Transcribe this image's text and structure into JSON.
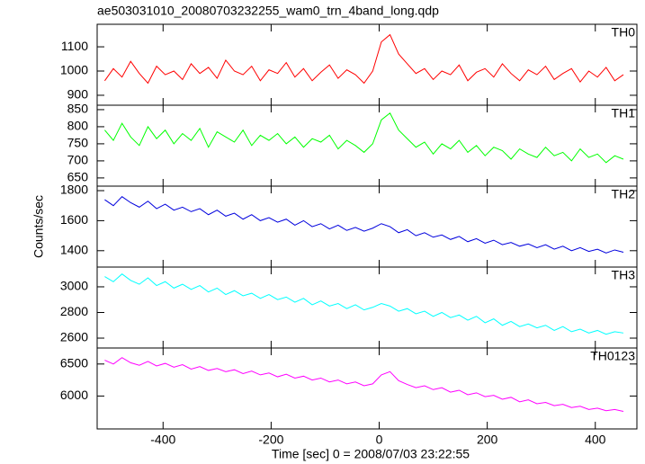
{
  "title": "ae503031010_20080703232255_wam0_trn_4band_long.qdp",
  "y_label": "Counts/sec",
  "x_label": "Time [sec] 0 = 2008/07/03 23:22:55",
  "chart_data": [
    {
      "type": "line",
      "label": "TH0",
      "color": "#ff0000",
      "x": [
        -508,
        -492,
        -476,
        -460,
        -444,
        -428,
        -412,
        -396,
        -380,
        -364,
        -348,
        -332,
        -316,
        -300,
        -284,
        -268,
        -252,
        -236,
        -220,
        -204,
        -188,
        -172,
        -156,
        -140,
        -124,
        -108,
        -92,
        -76,
        -60,
        -44,
        -28,
        -12,
        4,
        20,
        36,
        52,
        68,
        84,
        100,
        116,
        132,
        148,
        164,
        180,
        196,
        212,
        228,
        244,
        260,
        276,
        292,
        308,
        324,
        340,
        356,
        372,
        388,
        404,
        420,
        436,
        452
      ],
      "values": [
        960,
        1010,
        975,
        1040,
        990,
        950,
        1020,
        985,
        1000,
        965,
        1030,
        990,
        1015,
        970,
        1045,
        1000,
        985,
        1020,
        960,
        1005,
        990,
        1035,
        975,
        1010,
        960,
        995,
        1025,
        970,
        1005,
        985,
        950,
        1000,
        1120,
        1150,
        1070,
        1030,
        990,
        1010,
        965,
        1000,
        985,
        1025,
        960,
        995,
        1010,
        975,
        1030,
        990,
        960,
        1005,
        985,
        1020,
        965,
        990,
        1010,
        955,
        1000,
        975,
        1015,
        960,
        985
      ],
      "xlim": [
        -522,
        477
      ],
      "ylim": [
        859,
        1193
      ],
      "yticks": [
        900,
        1000,
        1100
      ]
    },
    {
      "type": "line",
      "label": "TH1",
      "color": "#00ff00",
      "x": [
        -508,
        -492,
        -476,
        -460,
        -444,
        -428,
        -412,
        -396,
        -380,
        -364,
        -348,
        -332,
        -316,
        -300,
        -284,
        -268,
        -252,
        -236,
        -220,
        -204,
        -188,
        -172,
        -156,
        -140,
        -124,
        -108,
        -92,
        -76,
        -60,
        -44,
        -28,
        -12,
        4,
        20,
        36,
        52,
        68,
        84,
        100,
        116,
        132,
        148,
        164,
        180,
        196,
        212,
        228,
        244,
        260,
        276,
        292,
        308,
        324,
        340,
        356,
        372,
        388,
        404,
        420,
        436,
        452
      ],
      "values": [
        790,
        760,
        810,
        770,
        745,
        800,
        765,
        790,
        750,
        780,
        760,
        795,
        740,
        785,
        770,
        755,
        790,
        745,
        775,
        760,
        780,
        750,
        770,
        740,
        765,
        755,
        775,
        735,
        760,
        745,
        725,
        750,
        820,
        840,
        790,
        765,
        740,
        755,
        720,
        750,
        735,
        760,
        725,
        745,
        715,
        740,
        730,
        705,
        735,
        720,
        710,
        740,
        715,
        725,
        700,
        735,
        710,
        720,
        695,
        715,
        705
      ],
      "xlim": [
        -522,
        477
      ],
      "ylim": [
        626,
        863
      ],
      "yticks": [
        650,
        700,
        750,
        800,
        850
      ]
    },
    {
      "type": "line",
      "label": "TH2",
      "color": "#0000dd",
      "x": [
        -508,
        -492,
        -476,
        -460,
        -444,
        -428,
        -412,
        -396,
        -380,
        -364,
        -348,
        -332,
        -316,
        -300,
        -284,
        -268,
        -252,
        -236,
        -220,
        -204,
        -188,
        -172,
        -156,
        -140,
        -124,
        -108,
        -92,
        -76,
        -60,
        -44,
        -28,
        -12,
        4,
        20,
        36,
        52,
        68,
        84,
        100,
        116,
        132,
        148,
        164,
        180,
        196,
        212,
        228,
        244,
        260,
        276,
        292,
        308,
        324,
        340,
        356,
        372,
        388,
        404,
        420,
        436,
        452
      ],
      "values": [
        1740,
        1700,
        1760,
        1720,
        1690,
        1730,
        1680,
        1710,
        1670,
        1690,
        1660,
        1680,
        1640,
        1670,
        1630,
        1650,
        1610,
        1640,
        1600,
        1620,
        1590,
        1610,
        1570,
        1600,
        1560,
        1580,
        1545,
        1570,
        1535,
        1555,
        1530,
        1550,
        1580,
        1560,
        1520,
        1540,
        1500,
        1520,
        1490,
        1505,
        1475,
        1495,
        1460,
        1480,
        1450,
        1470,
        1440,
        1455,
        1430,
        1445,
        1420,
        1440,
        1410,
        1430,
        1400,
        1420,
        1395,
        1410,
        1385,
        1405,
        1390
      ],
      "xlim": [
        -522,
        477
      ],
      "ylim": [
        1291,
        1830
      ],
      "yticks": [
        1400,
        1600,
        1800
      ]
    },
    {
      "type": "line",
      "label": "TH3",
      "color": "#00ffff",
      "x": [
        -508,
        -492,
        -476,
        -460,
        -444,
        -428,
        -412,
        -396,
        -380,
        -364,
        -348,
        -332,
        -316,
        -300,
        -284,
        -268,
        -252,
        -236,
        -220,
        -204,
        -188,
        -172,
        -156,
        -140,
        -124,
        -108,
        -92,
        -76,
        -60,
        -44,
        -28,
        -12,
        4,
        20,
        36,
        52,
        68,
        84,
        100,
        116,
        132,
        148,
        164,
        180,
        196,
        212,
        228,
        244,
        260,
        276,
        292,
        308,
        324,
        340,
        356,
        372,
        388,
        404,
        420,
        436,
        452
      ],
      "values": [
        3080,
        3040,
        3100,
        3050,
        3020,
        3070,
        3010,
        3040,
        2990,
        3020,
        2980,
        3010,
        2960,
        2990,
        2940,
        2970,
        2930,
        2950,
        2910,
        2940,
        2900,
        2920,
        2880,
        2910,
        2860,
        2890,
        2850,
        2870,
        2830,
        2860,
        2820,
        2840,
        2870,
        2850,
        2810,
        2830,
        2790,
        2810,
        2770,
        2800,
        2760,
        2780,
        2740,
        2770,
        2720,
        2750,
        2700,
        2730,
        2690,
        2710,
        2680,
        2700,
        2660,
        2690,
        2650,
        2670,
        2640,
        2660,
        2630,
        2650,
        2640
      ],
      "xlim": [
        -522,
        477
      ],
      "ylim": [
        2523,
        3154
      ],
      "yticks": [
        2600,
        2800,
        3000
      ]
    },
    {
      "type": "line",
      "label": "TH0123",
      "color": "#ff00ff",
      "x": [
        -508,
        -492,
        -476,
        -460,
        -444,
        -428,
        -412,
        -396,
        -380,
        -364,
        -348,
        -332,
        -316,
        -300,
        -284,
        -268,
        -252,
        -236,
        -220,
        -204,
        -188,
        -172,
        -156,
        -140,
        -124,
        -108,
        -92,
        -76,
        -60,
        -44,
        -28,
        -12,
        4,
        20,
        36,
        52,
        68,
        84,
        100,
        116,
        132,
        148,
        164,
        180,
        196,
        212,
        228,
        244,
        260,
        276,
        292,
        308,
        324,
        340,
        356,
        372,
        388,
        404,
        420,
        436,
        452
      ],
      "values": [
        6560,
        6500,
        6600,
        6520,
        6480,
        6540,
        6470,
        6510,
        6450,
        6490,
        6420,
        6460,
        6400,
        6430,
        6380,
        6410,
        6350,
        6390,
        6330,
        6360,
        6300,
        6340,
        6280,
        6310,
        6250,
        6280,
        6220,
        6250,
        6190,
        6220,
        6160,
        6190,
        6330,
        6380,
        6240,
        6180,
        6130,
        6160,
        6100,
        6130,
        6060,
        6090,
        6020,
        6050,
        5990,
        6010,
        5950,
        5980,
        5910,
        5940,
        5880,
        5900,
        5850,
        5870,
        5820,
        5840,
        5790,
        5810,
        5770,
        5790,
        5760
      ],
      "xlim": [
        -522,
        477
      ],
      "ylim": [
        5486,
        6750
      ],
      "yticks": [
        6000,
        6500
      ],
      "xticks": [
        -400,
        -200,
        0,
        200,
        400
      ]
    }
  ]
}
